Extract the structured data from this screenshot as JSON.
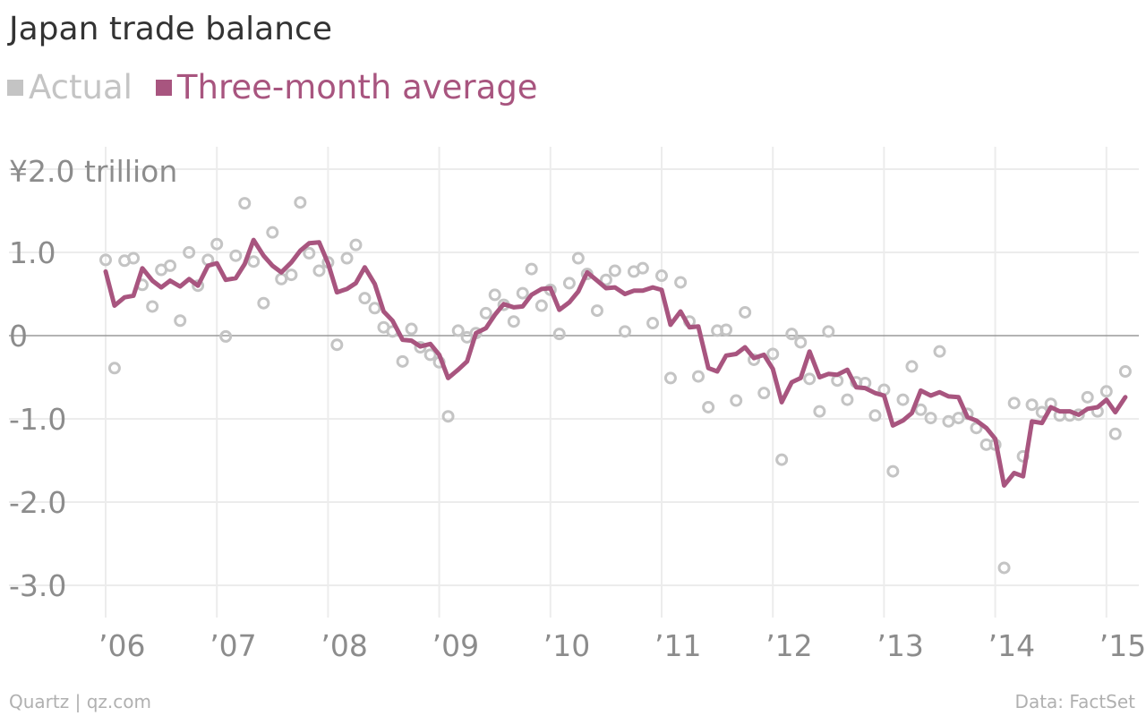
{
  "chart_data": {
    "type": "line",
    "title": "Japan trade balance",
    "unit_label": "¥2.0 trillion",
    "ylim": [
      -3.4,
      2.0
    ],
    "xlim": [
      2006.0,
      2015.2
    ],
    "y_ticks": [
      {
        "value": 1.0,
        "label": "1.0"
      },
      {
        "value": 0,
        "label": "0"
      },
      {
        "value": -1.0,
        "label": "-1.0"
      },
      {
        "value": -2.0,
        "label": "-2.0"
      },
      {
        "value": -3.0,
        "label": "-3.0"
      }
    ],
    "x_ticks": [
      {
        "value": 2006,
        "label": "’06"
      },
      {
        "value": 2007,
        "label": "’07"
      },
      {
        "value": 2008,
        "label": "’08"
      },
      {
        "value": 2009,
        "label": "’09"
      },
      {
        "value": 2010,
        "label": "’10"
      },
      {
        "value": 2011,
        "label": "’11"
      },
      {
        "value": 2012,
        "label": "’12"
      },
      {
        "value": 2013,
        "label": "’13"
      },
      {
        "value": 2014,
        "label": "’14"
      },
      {
        "value": 2015,
        "label": "’15"
      }
    ],
    "grid": true,
    "legend_position": "top-left",
    "series": [
      {
        "name": "Actual",
        "style": "scatter",
        "color": "#c4c4c4",
        "points": [
          [
            2006.0,
            0.91
          ],
          [
            2006.08,
            -0.39
          ],
          [
            2006.17,
            0.9
          ],
          [
            2006.25,
            0.93
          ],
          [
            2006.33,
            0.61
          ],
          [
            2006.42,
            0.35
          ],
          [
            2006.5,
            0.79
          ],
          [
            2006.58,
            0.84
          ],
          [
            2006.67,
            0.18
          ],
          [
            2006.75,
            1.0
          ],
          [
            2006.83,
            0.6
          ],
          [
            2006.92,
            0.91
          ],
          [
            2007.0,
            1.1
          ],
          [
            2007.08,
            -0.01
          ],
          [
            2007.17,
            0.96
          ],
          [
            2007.25,
            1.59
          ],
          [
            2007.33,
            0.89
          ],
          [
            2007.42,
            0.39
          ],
          [
            2007.5,
            1.24
          ],
          [
            2007.58,
            0.68
          ],
          [
            2007.67,
            0.73
          ],
          [
            2007.75,
            1.6
          ],
          [
            2007.83,
            0.99
          ],
          [
            2007.92,
            0.78
          ],
          [
            2008.0,
            0.88
          ],
          [
            2008.08,
            -0.11
          ],
          [
            2008.17,
            0.93
          ],
          [
            2008.25,
            1.09
          ],
          [
            2008.33,
            0.45
          ],
          [
            2008.42,
            0.33
          ],
          [
            2008.5,
            0.1
          ],
          [
            2008.58,
            0.05
          ],
          [
            2008.67,
            -0.31
          ],
          [
            2008.75,
            0.08
          ],
          [
            2008.83,
            -0.14
          ],
          [
            2008.92,
            -0.23
          ],
          [
            2009.0,
            -0.32
          ],
          [
            2009.08,
            -0.97
          ],
          [
            2009.17,
            0.06
          ],
          [
            2009.25,
            -0.02
          ],
          [
            2009.33,
            0.03
          ],
          [
            2009.42,
            0.27
          ],
          [
            2009.5,
            0.49
          ],
          [
            2009.58,
            0.37
          ],
          [
            2009.67,
            0.17
          ],
          [
            2009.75,
            0.51
          ],
          [
            2009.83,
            0.8
          ],
          [
            2009.92,
            0.36
          ],
          [
            2010.0,
            0.55
          ],
          [
            2010.08,
            0.02
          ],
          [
            2010.17,
            0.63
          ],
          [
            2010.25,
            0.93
          ],
          [
            2010.33,
            0.74
          ],
          [
            2010.42,
            0.3
          ],
          [
            2010.5,
            0.67
          ],
          [
            2010.58,
            0.78
          ],
          [
            2010.67,
            0.05
          ],
          [
            2010.75,
            0.77
          ],
          [
            2010.83,
            0.81
          ],
          [
            2010.92,
            0.15
          ],
          [
            2011.0,
            0.72
          ],
          [
            2011.08,
            -0.51
          ],
          [
            2011.17,
            0.64
          ],
          [
            2011.25,
            0.17
          ],
          [
            2011.33,
            -0.49
          ],
          [
            2011.42,
            -0.86
          ],
          [
            2011.5,
            0.06
          ],
          [
            2011.58,
            0.07
          ],
          [
            2011.67,
            -0.78
          ],
          [
            2011.75,
            0.28
          ],
          [
            2011.83,
            -0.29
          ],
          [
            2011.92,
            -0.69
          ],
          [
            2012.0,
            -0.22
          ],
          [
            2012.08,
            -1.49
          ],
          [
            2012.17,
            0.02
          ],
          [
            2012.25,
            -0.08
          ],
          [
            2012.33,
            -0.52
          ],
          [
            2012.42,
            -0.91
          ],
          [
            2012.5,
            0.05
          ],
          [
            2012.58,
            -0.54
          ],
          [
            2012.67,
            -0.77
          ],
          [
            2012.75,
            -0.56
          ],
          [
            2012.83,
            -0.57
          ],
          [
            2012.92,
            -0.96
          ],
          [
            2013.0,
            -0.65
          ],
          [
            2013.08,
            -1.63
          ],
          [
            2013.17,
            -0.77
          ],
          [
            2013.25,
            -0.37
          ],
          [
            2013.33,
            -0.89
          ],
          [
            2013.42,
            -0.99
          ],
          [
            2013.5,
            -0.19
          ],
          [
            2013.58,
            -1.03
          ],
          [
            2013.67,
            -0.99
          ],
          [
            2013.75,
            -0.94
          ],
          [
            2013.83,
            -1.11
          ],
          [
            2013.92,
            -1.31
          ],
          [
            2014.0,
            -1.31
          ],
          [
            2014.08,
            -2.79
          ],
          [
            2014.17,
            -0.81
          ],
          [
            2014.25,
            -1.45
          ],
          [
            2014.33,
            -0.83
          ],
          [
            2014.42,
            -0.92
          ],
          [
            2014.5,
            -0.82
          ],
          [
            2014.58,
            -0.96
          ],
          [
            2014.67,
            -0.96
          ],
          [
            2014.75,
            -0.95
          ],
          [
            2014.83,
            -0.74
          ],
          [
            2014.92,
            -0.91
          ],
          [
            2015.0,
            -0.67
          ],
          [
            2015.08,
            -1.18
          ],
          [
            2015.17,
            -0.43
          ]
        ]
      },
      {
        "name": "Three-month average",
        "style": "line",
        "color": "#a8557f",
        "points": [
          [
            2006.0,
            0.77
          ],
          [
            2006.08,
            0.36
          ],
          [
            2006.17,
            0.46
          ],
          [
            2006.25,
            0.48
          ],
          [
            2006.33,
            0.81
          ],
          [
            2006.42,
            0.66
          ],
          [
            2006.5,
            0.58
          ],
          [
            2006.58,
            0.66
          ],
          [
            2006.67,
            0.59
          ],
          [
            2006.75,
            0.68
          ],
          [
            2006.83,
            0.6
          ],
          [
            2006.92,
            0.84
          ],
          [
            2007.0,
            0.87
          ],
          [
            2007.08,
            0.67
          ],
          [
            2007.17,
            0.69
          ],
          [
            2007.25,
            0.86
          ],
          [
            2007.33,
            1.15
          ],
          [
            2007.42,
            0.96
          ],
          [
            2007.5,
            0.84
          ],
          [
            2007.58,
            0.76
          ],
          [
            2007.67,
            0.88
          ],
          [
            2007.75,
            1.02
          ],
          [
            2007.83,
            1.11
          ],
          [
            2007.92,
            1.12
          ],
          [
            2008.0,
            0.87
          ],
          [
            2008.08,
            0.52
          ],
          [
            2008.17,
            0.56
          ],
          [
            2008.25,
            0.63
          ],
          [
            2008.33,
            0.82
          ],
          [
            2008.42,
            0.62
          ],
          [
            2008.5,
            0.29
          ],
          [
            2008.58,
            0.18
          ],
          [
            2008.67,
            -0.05
          ],
          [
            2008.75,
            -0.06
          ],
          [
            2008.83,
            -0.13
          ],
          [
            2008.92,
            -0.1
          ],
          [
            2009.0,
            -0.23
          ],
          [
            2009.08,
            -0.51
          ],
          [
            2009.17,
            -0.41
          ],
          [
            2009.25,
            -0.31
          ],
          [
            2009.33,
            0.03
          ],
          [
            2009.42,
            0.09
          ],
          [
            2009.5,
            0.25
          ],
          [
            2009.58,
            0.38
          ],
          [
            2009.67,
            0.34
          ],
          [
            2009.75,
            0.35
          ],
          [
            2009.83,
            0.49
          ],
          [
            2009.92,
            0.56
          ],
          [
            2010.0,
            0.57
          ],
          [
            2010.08,
            0.31
          ],
          [
            2010.17,
            0.4
          ],
          [
            2010.25,
            0.53
          ],
          [
            2010.33,
            0.76
          ],
          [
            2010.42,
            0.66
          ],
          [
            2010.5,
            0.57
          ],
          [
            2010.58,
            0.58
          ],
          [
            2010.67,
            0.5
          ],
          [
            2010.75,
            0.54
          ],
          [
            2010.83,
            0.54
          ],
          [
            2010.92,
            0.58
          ],
          [
            2011.0,
            0.55
          ],
          [
            2011.08,
            0.13
          ],
          [
            2011.17,
            0.29
          ],
          [
            2011.25,
            0.1
          ],
          [
            2011.33,
            0.11
          ],
          [
            2011.42,
            -0.39
          ],
          [
            2011.5,
            -0.43
          ],
          [
            2011.58,
            -0.24
          ],
          [
            2011.67,
            -0.22
          ],
          [
            2011.75,
            -0.14
          ],
          [
            2011.83,
            -0.27
          ],
          [
            2011.92,
            -0.23
          ],
          [
            2012.0,
            -0.4
          ],
          [
            2012.08,
            -0.8
          ],
          [
            2012.17,
            -0.56
          ],
          [
            2012.25,
            -0.51
          ],
          [
            2012.33,
            -0.19
          ],
          [
            2012.42,
            -0.5
          ],
          [
            2012.5,
            -0.46
          ],
          [
            2012.58,
            -0.47
          ],
          [
            2012.67,
            -0.41
          ],
          [
            2012.75,
            -0.62
          ],
          [
            2012.83,
            -0.63
          ],
          [
            2012.92,
            -0.69
          ],
          [
            2013.0,
            -0.72
          ],
          [
            2013.08,
            -1.08
          ],
          [
            2013.17,
            -1.02
          ],
          [
            2013.25,
            -0.93
          ],
          [
            2013.33,
            -0.66
          ],
          [
            2013.42,
            -0.72
          ],
          [
            2013.5,
            -0.68
          ],
          [
            2013.58,
            -0.73
          ],
          [
            2013.67,
            -0.74
          ],
          [
            2013.75,
            -0.98
          ],
          [
            2013.83,
            -1.02
          ],
          [
            2013.92,
            -1.11
          ],
          [
            2014.0,
            -1.24
          ],
          [
            2014.08,
            -1.8
          ],
          [
            2014.17,
            -1.65
          ],
          [
            2014.25,
            -1.69
          ],
          [
            2014.33,
            -1.03
          ],
          [
            2014.42,
            -1.05
          ],
          [
            2014.5,
            -0.86
          ],
          [
            2014.58,
            -0.91
          ],
          [
            2014.67,
            -0.91
          ],
          [
            2014.75,
            -0.95
          ],
          [
            2014.83,
            -0.88
          ],
          [
            2014.92,
            -0.86
          ],
          [
            2015.0,
            -0.77
          ],
          [
            2015.08,
            -0.92
          ],
          [
            2015.17,
            -0.74
          ]
        ]
      }
    ]
  },
  "footer": {
    "source_left": "Quartz | qz.com",
    "source_right": "Data: FactSet"
  }
}
